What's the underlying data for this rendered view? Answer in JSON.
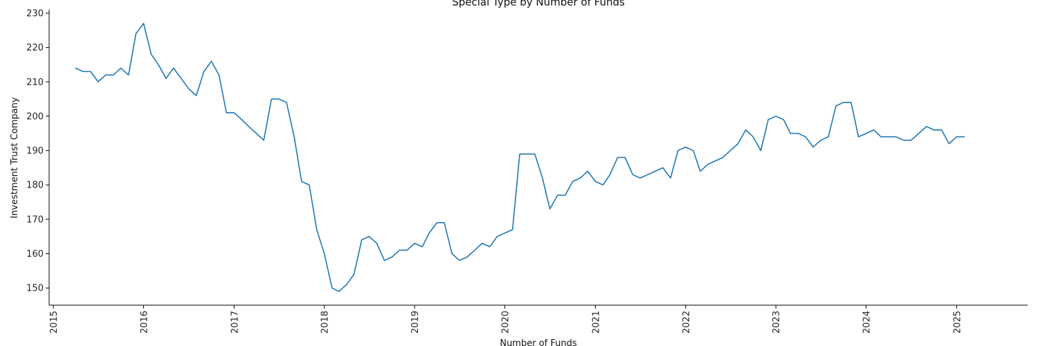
{
  "chart_data": {
    "type": "line",
    "title": "Special Type by Number of Funds",
    "xlabel": "Number of Funds",
    "ylabel": "Investment Trust Company",
    "x_tick_labels": [
      "2015",
      "2016",
      "2017",
      "2018",
      "2019",
      "2020",
      "2021",
      "2022",
      "2023",
      "2024",
      "2025"
    ],
    "y_tick_labels": [
      "150",
      "160",
      "170",
      "180",
      "190",
      "200",
      "210",
      "220",
      "230"
    ],
    "xlim": [
      "2014-12-15",
      "2025-10-15"
    ],
    "ylim": [
      145,
      231
    ],
    "grid": false,
    "line_color": "#1f77b4",
    "series": [
      {
        "x": [
          "2015-04",
          "2015-05",
          "2015-06",
          "2015-07",
          "2015-08",
          "2015-09",
          "2015-10",
          "2015-11",
          "2015-12",
          "2016-01",
          "2016-02",
          "2016-03",
          "2016-04",
          "2016-05",
          "2016-06",
          "2016-07",
          "2016-08",
          "2016-09",
          "2016-10",
          "2016-11",
          "2016-12",
          "2017-01",
          "2017-02",
          "2017-03",
          "2017-04",
          "2017-05",
          "2017-06",
          "2017-07",
          "2017-08",
          "2017-09",
          "2017-10",
          "2017-11",
          "2017-12",
          "2018-01",
          "2018-02",
          "2018-03",
          "2018-04",
          "2018-05",
          "2018-06",
          "2018-07",
          "2018-08",
          "2018-09",
          "2018-10",
          "2018-11",
          "2018-12",
          "2019-01",
          "2019-02",
          "2019-03",
          "2019-04",
          "2019-05",
          "2019-06",
          "2019-07",
          "2019-08",
          "2019-09",
          "2019-10",
          "2019-11",
          "2019-12",
          "2020-01",
          "2020-02",
          "2020-03",
          "2020-04",
          "2020-05",
          "2020-06",
          "2020-07",
          "2020-08",
          "2020-09",
          "2020-10",
          "2020-11",
          "2020-12",
          "2021-01",
          "2021-02",
          "2021-03",
          "2021-04",
          "2021-05",
          "2021-06",
          "2021-07",
          "2021-08",
          "2021-09",
          "2021-10",
          "2021-11",
          "2021-12",
          "2022-01",
          "2022-02",
          "2022-03",
          "2022-04",
          "2022-05",
          "2022-06",
          "2022-07",
          "2022-08",
          "2022-09",
          "2022-10",
          "2022-11",
          "2022-12",
          "2023-01",
          "2023-02",
          "2023-03",
          "2023-04",
          "2023-05",
          "2023-06",
          "2023-07",
          "2023-08",
          "2023-09",
          "2023-10",
          "2023-11",
          "2023-12",
          "2024-01",
          "2024-02",
          "2024-03",
          "2024-04",
          "2024-05",
          "2024-06",
          "2024-07",
          "2024-08",
          "2024-09",
          "2024-10",
          "2024-11",
          "2024-12",
          "2025-01",
          "2025-02"
        ],
        "values": [
          214,
          213,
          213,
          210,
          212,
          212,
          214,
          212,
          224,
          227,
          218,
          215,
          211,
          214,
          211,
          208,
          206,
          213,
          216,
          212,
          201,
          201,
          199,
          197,
          195,
          193,
          205,
          205,
          204,
          194,
          181,
          180,
          167,
          160,
          150,
          149,
          151,
          154,
          164,
          165,
          163,
          158,
          159,
          161,
          161,
          163,
          162,
          166,
          169,
          169,
          160,
          158,
          159,
          161,
          163,
          162,
          165,
          166,
          167,
          189,
          189,
          189,
          182,
          173,
          177,
          177,
          181,
          182,
          184,
          181,
          180,
          183,
          188,
          188,
          183,
          182,
          183,
          184,
          185,
          182,
          190,
          191,
          190,
          184,
          186,
          187,
          188,
          190,
          192,
          196,
          194,
          190,
          199,
          200,
          199,
          195,
          195,
          194,
          191,
          193,
          194,
          203,
          204,
          204,
          194,
          195,
          196,
          194,
          194,
          194,
          193,
          193,
          195,
          197,
          196,
          196,
          192,
          194,
          194
        ]
      }
    ]
  }
}
